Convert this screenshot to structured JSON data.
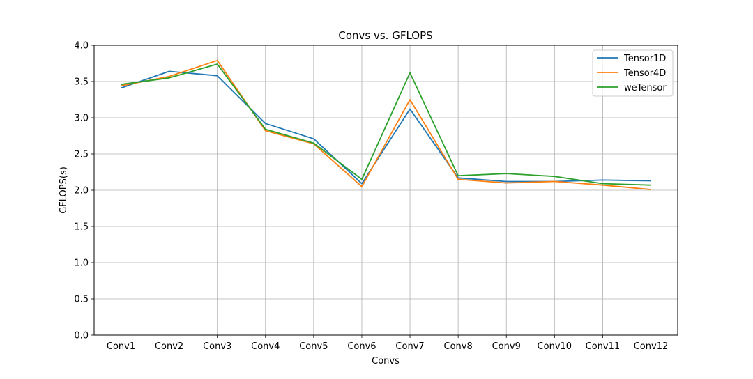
{
  "chart_data": {
    "type": "line",
    "title": "Convs vs. GFLOPS",
    "xlabel": "Convs",
    "ylabel": "GFLOPS(s)",
    "categories": [
      "Conv1",
      "Conv2",
      "Conv3",
      "Conv4",
      "Conv5",
      "Conv6",
      "Conv7",
      "Conv8",
      "Conv9",
      "Conv10",
      "Conv11",
      "Conv12"
    ],
    "ylim": [
      0.0,
      4.0
    ],
    "yticks": [
      "0.0",
      "0.5",
      "1.0",
      "1.5",
      "2.0",
      "2.5",
      "3.0",
      "3.5",
      "4.0"
    ],
    "grid": true,
    "legend_position": "top-right",
    "series": [
      {
        "name": "Tensor1D",
        "color": "#1f77b4",
        "values": [
          3.41,
          3.64,
          3.58,
          2.92,
          2.71,
          2.09,
          3.12,
          2.17,
          2.12,
          2.12,
          2.14,
          2.13
        ]
      },
      {
        "name": "Tensor4D",
        "color": "#ff7f0e",
        "values": [
          3.44,
          3.57,
          3.79,
          2.82,
          2.64,
          2.05,
          3.25,
          2.15,
          2.1,
          2.12,
          2.07,
          2.01
        ]
      },
      {
        "name": "weTensor",
        "color": "#2ca02c",
        "values": [
          3.46,
          3.55,
          3.74,
          2.84,
          2.65,
          2.15,
          3.62,
          2.2,
          2.23,
          2.19,
          2.09,
          2.07
        ]
      }
    ]
  }
}
